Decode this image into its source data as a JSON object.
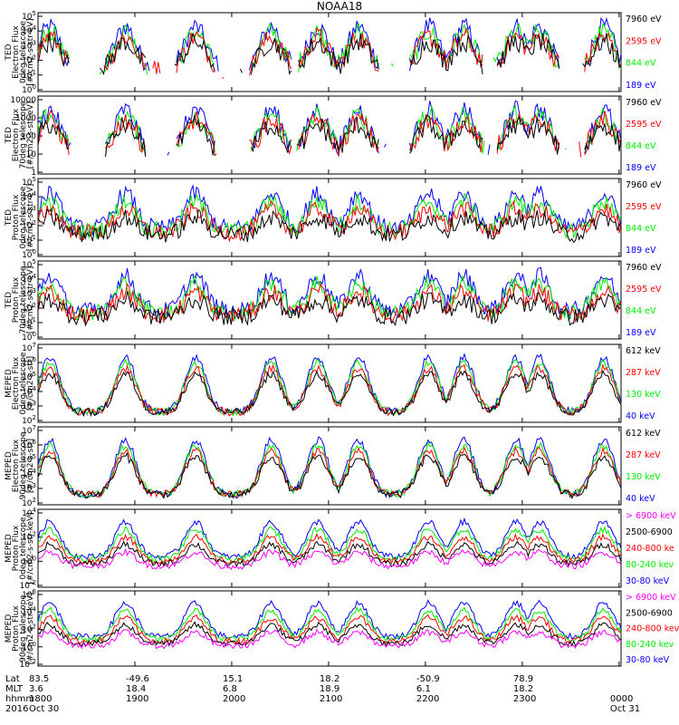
{
  "title": "NOAA18",
  "colors": {
    "black": "#000000",
    "red": "#ff0000",
    "green": "#00ee00",
    "blue": "#0000ff",
    "magenta": "#ff00ff"
  },
  "chart_data": [
    {
      "type": "line",
      "ylabel_lines": [
        "TED",
        "Electron Flux",
        "0deg telescope",
        "[#/cm2-s-str-eV]"
      ],
      "yscale": "log",
      "ytick_labels": [
        "10^0",
        "10^1",
        "10^2",
        "10^3",
        "10^4",
        "10^5"
      ],
      "ylim_exp": [
        0,
        5
      ],
      "series": [
        {
          "name": "7960 eV",
          "color": "#000000"
        },
        {
          "name": "2595 eV",
          "color": "#ff0000"
        },
        {
          "name": "844 eV",
          "color": "#00ee00"
        },
        {
          "name": "189 eV",
          "color": "#0000ff"
        }
      ]
    },
    {
      "type": "line",
      "ylabel_lines": [
        "TED",
        "Electron Flux",
        "70deg telescope",
        "[#/cm2-s-str-eV]"
      ],
      "yscale": "log",
      "ytick_labels": [
        "1",
        "10",
        "100",
        "1000",
        "10000"
      ],
      "ylim_exp": [
        0,
        4
      ],
      "series": [
        {
          "name": "7960 eV",
          "color": "#000000"
        },
        {
          "name": "2595 eV",
          "color": "#ff0000"
        },
        {
          "name": "844 eV",
          "color": "#00ee00"
        },
        {
          "name": "189 eV",
          "color": "#0000ff"
        }
      ]
    },
    {
      "type": "line",
      "ylabel_lines": [
        "TED",
        "Proton Flux",
        "0deg telescope",
        "[#/cm2-s-str-eV]"
      ],
      "yscale": "log",
      "ytick_labels": [
        "10^0",
        "10^1",
        "10^2",
        "10^3",
        "10^4",
        "10^5"
      ],
      "ylim_exp": [
        0,
        5
      ],
      "series": [
        {
          "name": "7960 eV",
          "color": "#000000"
        },
        {
          "name": "2595 eV",
          "color": "#ff0000"
        },
        {
          "name": "844 eV",
          "color": "#00ee00"
        },
        {
          "name": "189 eV",
          "color": "#0000ff"
        }
      ]
    },
    {
      "type": "line",
      "ylabel_lines": [
        "TED",
        "Proton Flux",
        "70deg telescope",
        "[#/cm2-s-str-eV]"
      ],
      "yscale": "log",
      "ytick_labels": [
        "10^0",
        "10^1",
        "10^2",
        "10^3",
        "10^4",
        "10^5"
      ],
      "ylim_exp": [
        0,
        5
      ],
      "series": [
        {
          "name": "7960 eV",
          "color": "#000000"
        },
        {
          "name": "2595 eV",
          "color": "#ff0000"
        },
        {
          "name": "844 eV",
          "color": "#00ee00"
        },
        {
          "name": "189 eV",
          "color": "#0000ff"
        }
      ]
    },
    {
      "type": "line",
      "ylabel_lines": [
        "MEPED",
        "Electron Flux",
        "0deg telescope",
        "[#/cm2-s-str]"
      ],
      "yscale": "log",
      "ytick_labels": [
        "10^2",
        "10^3",
        "10^4",
        "10^5",
        "10^6",
        "10^7"
      ],
      "ylim_exp": [
        2,
        7
      ],
      "series": [
        {
          "name": "612 keV",
          "color": "#000000"
        },
        {
          "name": "287 keV",
          "color": "#ff0000"
        },
        {
          "name": "130 keV",
          "color": "#00ee00"
        },
        {
          "name": "40 keV",
          "color": "#0000ff"
        }
      ]
    },
    {
      "type": "line",
      "ylabel_lines": [
        "MEPED",
        "Electron Flux",
        "90deg telescope",
        "[#/cm2-s-str]"
      ],
      "yscale": "log",
      "ytick_labels": [
        "10^2",
        "10^3",
        "10^4",
        "10^5",
        "10^6",
        "10^7"
      ],
      "ylim_exp": [
        2,
        7
      ],
      "series": [
        {
          "name": "612 keV",
          "color": "#000000"
        },
        {
          "name": "287 keV",
          "color": "#ff0000"
        },
        {
          "name": "130 keV",
          "color": "#00ee00"
        },
        {
          "name": "40 keV",
          "color": "#0000ff"
        }
      ]
    },
    {
      "type": "line",
      "ylabel_lines": [
        "MEPED",
        "Proton Flux",
        "0deg telescope",
        "[#/cm2-s-str-keV]"
      ],
      "yscale": "log",
      "ytick_labels": [
        "10^-2",
        "10^0",
        "10^2",
        "10^4"
      ],
      "ylim_exp": [
        -2,
        5
      ],
      "series": [
        {
          "name": "> 6900 keV",
          "color": "#ff00ff"
        },
        {
          "name": "2500-6900",
          "color": "#000000"
        },
        {
          "name": "240-800 ke",
          "color": "#ff0000"
        },
        {
          "name": "80-240 kev",
          "color": "#00ee00"
        },
        {
          "name": "30-80 keV",
          "color": "#0000ff"
        }
      ]
    },
    {
      "type": "line",
      "ylabel_lines": [
        "MEPED",
        "Proton Flux",
        "90deg telescope",
        "[#/cm2-s-str-keV]"
      ],
      "yscale": "log",
      "ytick_labels": [
        "10^-2",
        "10^0",
        "10^2",
        "10^4",
        "10^6"
      ],
      "ylim_exp": [
        -2,
        6
      ],
      "series": [
        {
          "name": "> 6900 keV",
          "color": "#ff00ff"
        },
        {
          "name": "2500-6900",
          "color": "#000000"
        },
        {
          "name": "240-800 kev",
          "color": "#ff0000"
        },
        {
          "name": "80-240 kev",
          "color": "#00ee00"
        },
        {
          "name": "30-80 keV",
          "color": "#0000ff"
        }
      ]
    }
  ],
  "footer": {
    "row_labels": [
      "Lat",
      "MLT",
      "hhmm",
      "2016"
    ],
    "columns": [
      {
        "lat": "83.5",
        "mlt": "3.6",
        "hhmm": "1800",
        "date": "Oct 30"
      },
      {
        "lat": "-49.6",
        "mlt": "18.4",
        "hhmm": "1900",
        "date": ""
      },
      {
        "lat": "15.1",
        "mlt": "6.8",
        "hhmm": "2000",
        "date": ""
      },
      {
        "lat": "18.2",
        "mlt": "18.9",
        "hhmm": "2100",
        "date": ""
      },
      {
        "lat": "-50.9",
        "mlt": "6.1",
        "hhmm": "2200",
        "date": ""
      },
      {
        "lat": "78.9",
        "mlt": "18.2",
        "hhmm": "2300",
        "date": ""
      },
      {
        "lat": "",
        "mlt": "",
        "hhmm": "0000",
        "date": "Oct 31"
      }
    ]
  }
}
